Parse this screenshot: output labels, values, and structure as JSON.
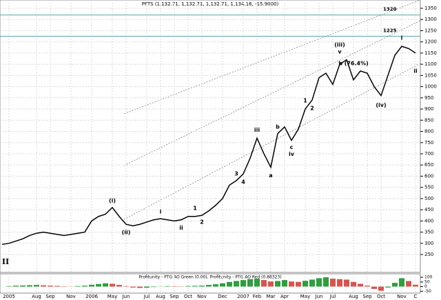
{
  "chart_data": [
    {
      "type": "line",
      "title": "PFTS (1,132.71, 1,132.71, 1,132.71, 1,134.16, -15.9000)",
      "categories": [
        null,
        "2005",
        null,
        null,
        null,
        "Aug",
        null,
        "Sep",
        null,
        null,
        "Nov",
        null,
        null,
        "2006",
        null,
        null,
        "May",
        null,
        "Jun",
        null,
        null,
        "Jul",
        null,
        "Aug",
        null,
        "Sep",
        null,
        "Oct",
        null,
        "Nov",
        null,
        null,
        "Dec",
        null,
        null,
        "2007",
        null,
        "Feb",
        null,
        "Mar",
        null,
        "Apr",
        null,
        null,
        "May",
        null,
        "Jun",
        null,
        "Jul",
        null,
        null,
        "Aug",
        null,
        "Sep",
        null,
        "Oct",
        null,
        null,
        "Nov",
        null,
        "C"
      ],
      "series": [
        {
          "name": "PFTS",
          "color": "#000000",
          "values": [
            295,
            300,
            310,
            320,
            335,
            345,
            350,
            345,
            340,
            335,
            340,
            345,
            350,
            400,
            420,
            430,
            460,
            420,
            385,
            378,
            385,
            395,
            405,
            410,
            405,
            400,
            405,
            420,
            420,
            425,
            445,
            470,
            500,
            560,
            580,
            610,
            680,
            770,
            700,
            640,
            790,
            820,
            760,
            810,
            900,
            940,
            1040,
            1060,
            1010,
            1100,
            1120,
            1030,
            1070,
            1060,
            1000,
            960,
            1050,
            1140,
            1180,
            1170,
            1150
          ]
        }
      ],
      "ylim": [
        170,
        1387
      ],
      "yticks": [
        250,
        300,
        350,
        400,
        450,
        500,
        550,
        600,
        650,
        700,
        750,
        800,
        850,
        900,
        950,
        1000,
        1050,
        1100,
        1150,
        1200,
        1250,
        1300,
        1350
      ],
      "hlines": [
        1320,
        1225
      ],
      "annotations": [
        "(i)",
        "(ii)",
        "i",
        "ii",
        "1",
        "2",
        "3",
        "4",
        "iii",
        "a",
        "b",
        "c",
        "iv",
        "1",
        "2",
        "(iii)",
        "v",
        "b (76.4%)",
        "(iv)",
        "i",
        "ii",
        "II"
      ],
      "grid": true
    },
    {
      "type": "bar",
      "title": "Profitunity - PTG AO Green (0.00), Profitunity - PTG AO Red (0.88323)",
      "values": [
        0,
        5,
        10,
        12,
        15,
        18,
        14,
        10,
        8,
        4,
        2,
        6,
        10,
        20,
        28,
        35,
        30,
        18,
        5,
        -10,
        -15,
        -12,
        -5,
        2,
        5,
        4,
        3,
        6,
        8,
        10,
        18,
        25,
        35,
        50,
        60,
        70,
        80,
        85,
        70,
        55,
        60,
        70,
        55,
        50,
        62,
        75,
        90,
        100,
        85,
        80,
        75,
        50,
        30,
        10,
        -25,
        -45,
        -10,
        40,
        90,
        60,
        20
      ],
      "up_color": "#2e9e3e",
      "down_color": "#d9534f",
      "ylim": [
        -70,
        130
      ],
      "yticks": [
        100,
        50,
        0,
        -50
      ]
    }
  ]
}
